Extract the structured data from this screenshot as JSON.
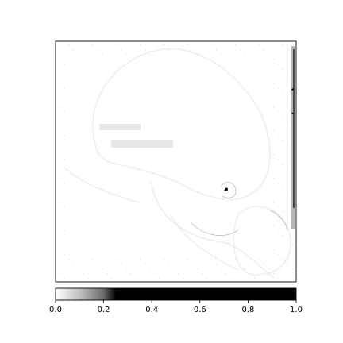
{
  "chart_data": {
    "type": "heatmap",
    "title": "",
    "xlabel": "",
    "ylabel": "",
    "colormap": "gray_r",
    "colorbar": {
      "orientation": "horizontal",
      "range": [
        0.0,
        1.0
      ],
      "ticks": [
        0.0,
        0.2,
        0.4,
        0.6,
        0.8,
        1.0
      ],
      "tick_labels": [
        "0.0",
        "0.2",
        "0.4",
        "0.6",
        "0.8",
        "1.0"
      ],
      "stops": [
        {
          "value": 0.0,
          "color": "#ffffff"
        },
        {
          "value": 0.02,
          "color": "#f2f2f2"
        },
        {
          "value": 0.1,
          "color": "#c0c0c0"
        },
        {
          "value": 0.2,
          "color": "#6a6a6a"
        },
        {
          "value": 0.25,
          "color": "#000000"
        },
        {
          "value": 1.0,
          "color": "#000000"
        }
      ]
    },
    "image": {
      "description_visible": "Sparse saliency map, mostly near 0 with faint outlines and a bright dark spot near center-right"
    },
    "hotspots": [
      {
        "u": 0.71,
        "v": 0.615,
        "value": 0.9
      },
      {
        "u": 0.705,
        "v": 0.62,
        "value": 0.6
      },
      {
        "u": 0.985,
        "v": 0.2,
        "value": 0.5
      },
      {
        "u": 0.985,
        "v": 0.3,
        "value": 0.35
      }
    ],
    "grid": false
  }
}
